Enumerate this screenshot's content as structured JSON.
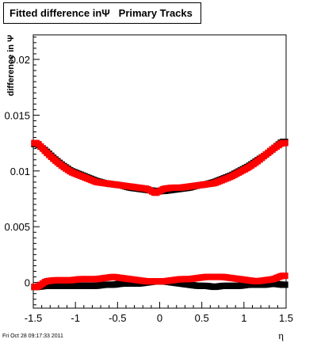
{
  "title": "Fitted difference inΨ   Primary Tracks",
  "timestamp": "Fri Oct 28 09:17:33 2011",
  "chart_data": {
    "type": "scatter",
    "title": "Fitted difference inΨ   Primary Tracks",
    "xlabel": "η",
    "ylabel": "difference in Ψ",
    "xlim": [
      -1.5,
      1.5
    ],
    "ylim": [
      -0.0023,
      0.0222
    ],
    "x_ticks": [
      "-1.5",
      "-1",
      "-0.5",
      "0",
      "0.5",
      "1",
      "1.5"
    ],
    "y_ticks": [
      "0",
      "0.005",
      "0.01",
      "0.015",
      "0.02"
    ],
    "grid": false,
    "legend": "none",
    "series": [
      {
        "color": "#000000",
        "marker": "square",
        "x": [
          -1.45,
          -1.35,
          -1.25,
          -1.15,
          -1.05,
          -0.95,
          -0.85,
          -0.75,
          -0.65,
          -0.55,
          -0.45,
          -0.35,
          -0.25,
          -0.15,
          -0.05,
          0.05,
          0.15,
          0.25,
          0.35,
          0.45,
          0.55,
          0.65,
          0.75,
          0.85,
          0.95,
          1.05,
          1.15,
          1.25,
          1.35,
          1.45
        ],
        "y": [
          0.0124,
          0.0118,
          0.0111,
          0.0105,
          0.01,
          0.0097,
          0.0094,
          0.0091,
          0.0089,
          0.0088,
          0.0087,
          0.0085,
          0.0084,
          0.0083,
          0.0082,
          0.0082,
          0.0083,
          0.0084,
          0.0085,
          0.0087,
          0.0088,
          0.009,
          0.0093,
          0.0096,
          0.01,
          0.0104,
          0.0109,
          0.0114,
          0.012,
          0.0126
        ]
      },
      {
        "color": "#ff0000",
        "marker": "square",
        "x": [
          -1.45,
          -1.35,
          -1.25,
          -1.15,
          -1.05,
          -0.95,
          -0.85,
          -0.75,
          -0.65,
          -0.55,
          -0.45,
          -0.35,
          -0.25,
          -0.15,
          -0.05,
          0.05,
          0.15,
          0.25,
          0.35,
          0.45,
          0.55,
          0.65,
          0.75,
          0.85,
          0.95,
          1.05,
          1.15,
          1.25,
          1.35,
          1.45
        ],
        "y": [
          0.0125,
          0.0117,
          0.011,
          0.0104,
          0.0099,
          0.0096,
          0.0093,
          0.009,
          0.0089,
          0.0088,
          0.0087,
          0.0086,
          0.0085,
          0.0084,
          0.008,
          0.0084,
          0.0085,
          0.0085,
          0.0086,
          0.0087,
          0.0088,
          0.0089,
          0.0092,
          0.0095,
          0.0099,
          0.0103,
          0.0108,
          0.0114,
          0.012,
          0.0125
        ]
      },
      {
        "color": "#000000",
        "marker": "square",
        "x": [
          -1.45,
          -1.35,
          -1.25,
          -1.15,
          -1.05,
          -0.95,
          -0.85,
          -0.75,
          -0.65,
          -0.55,
          -0.45,
          -0.35,
          -0.25,
          -0.15,
          -0.05,
          0.05,
          0.15,
          0.25,
          0.35,
          0.45,
          0.55,
          0.65,
          0.75,
          0.85,
          0.95,
          1.05,
          1.15,
          1.25,
          1.35,
          1.45
        ],
        "y": [
          -0.0004,
          -0.0003,
          -0.0003,
          -0.0003,
          -0.0003,
          -0.0003,
          -0.0003,
          -0.0003,
          -0.0002,
          -0.0002,
          -0.0001,
          -0.0001,
          -0.0001,
          0.0,
          0.0001,
          0.0001,
          0.0,
          -0.0001,
          -0.0002,
          -0.0003,
          -0.0003,
          -0.0004,
          -0.0003,
          -0.0003,
          -0.0003,
          -0.0002,
          -0.0002,
          -0.0002,
          -0.0001,
          -0.0002
        ]
      },
      {
        "color": "#ff0000",
        "marker": "square",
        "x": [
          -1.45,
          -1.35,
          -1.25,
          -1.15,
          -1.05,
          -0.95,
          -0.85,
          -0.75,
          -0.65,
          -0.55,
          -0.45,
          -0.35,
          -0.25,
          -0.15,
          -0.05,
          0.05,
          0.15,
          0.25,
          0.35,
          0.45,
          0.55,
          0.65,
          0.75,
          0.85,
          0.95,
          1.05,
          1.15,
          1.25,
          1.35,
          1.45
        ],
        "y": [
          -0.0004,
          0.0001,
          0.0002,
          0.0002,
          0.0002,
          0.0003,
          0.0003,
          0.0003,
          0.0004,
          0.0005,
          0.0004,
          0.0003,
          0.0002,
          0.0001,
          0.0001,
          0.0001,
          0.0002,
          0.0003,
          0.0003,
          0.0004,
          0.0005,
          0.0005,
          0.0005,
          0.0004,
          0.0003,
          0.0002,
          0.0001,
          0.0002,
          0.0003,
          0.0006
        ]
      }
    ]
  }
}
